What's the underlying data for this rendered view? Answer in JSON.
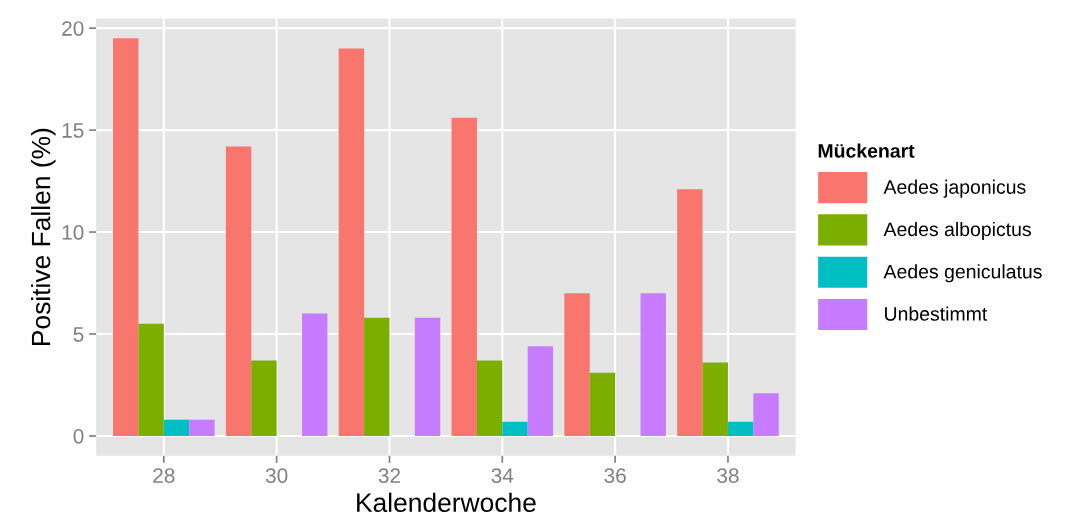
{
  "chart_data": {
    "type": "bar",
    "xlabel": "Kalenderwoche",
    "ylabel": "Positive Fallen (%)",
    "legend_title": "Mückenart",
    "x": [
      28,
      30,
      32,
      34,
      36,
      38
    ],
    "series": [
      {
        "name": "Aedes japonicus",
        "color": "#f8766d",
        "values": [
          19.5,
          14.2,
          19.0,
          15.6,
          7.0,
          12.1
        ]
      },
      {
        "name": "Aedes albopictus",
        "color": "#7cae00",
        "values": [
          5.5,
          3.7,
          5.8,
          3.7,
          3.1,
          3.6
        ]
      },
      {
        "name": "Aedes geniculatus",
        "color": "#00bfc4",
        "values": [
          0.8,
          null,
          null,
          0.7,
          null,
          0.7
        ]
      },
      {
        "name": "Unbestimmt",
        "color": "#c77cff",
        "values": [
          0.8,
          6.0,
          5.8,
          4.4,
          7.0,
          2.1
        ]
      }
    ],
    "xlim": [
      26.8,
      39.2
    ],
    "xticks": [
      28,
      30,
      32,
      34,
      36,
      38
    ],
    "ylim": [
      -0.975,
      20.475
    ],
    "yticks": [
      0,
      5,
      10,
      15,
      20
    ],
    "grid": true,
    "legend": "right"
  }
}
